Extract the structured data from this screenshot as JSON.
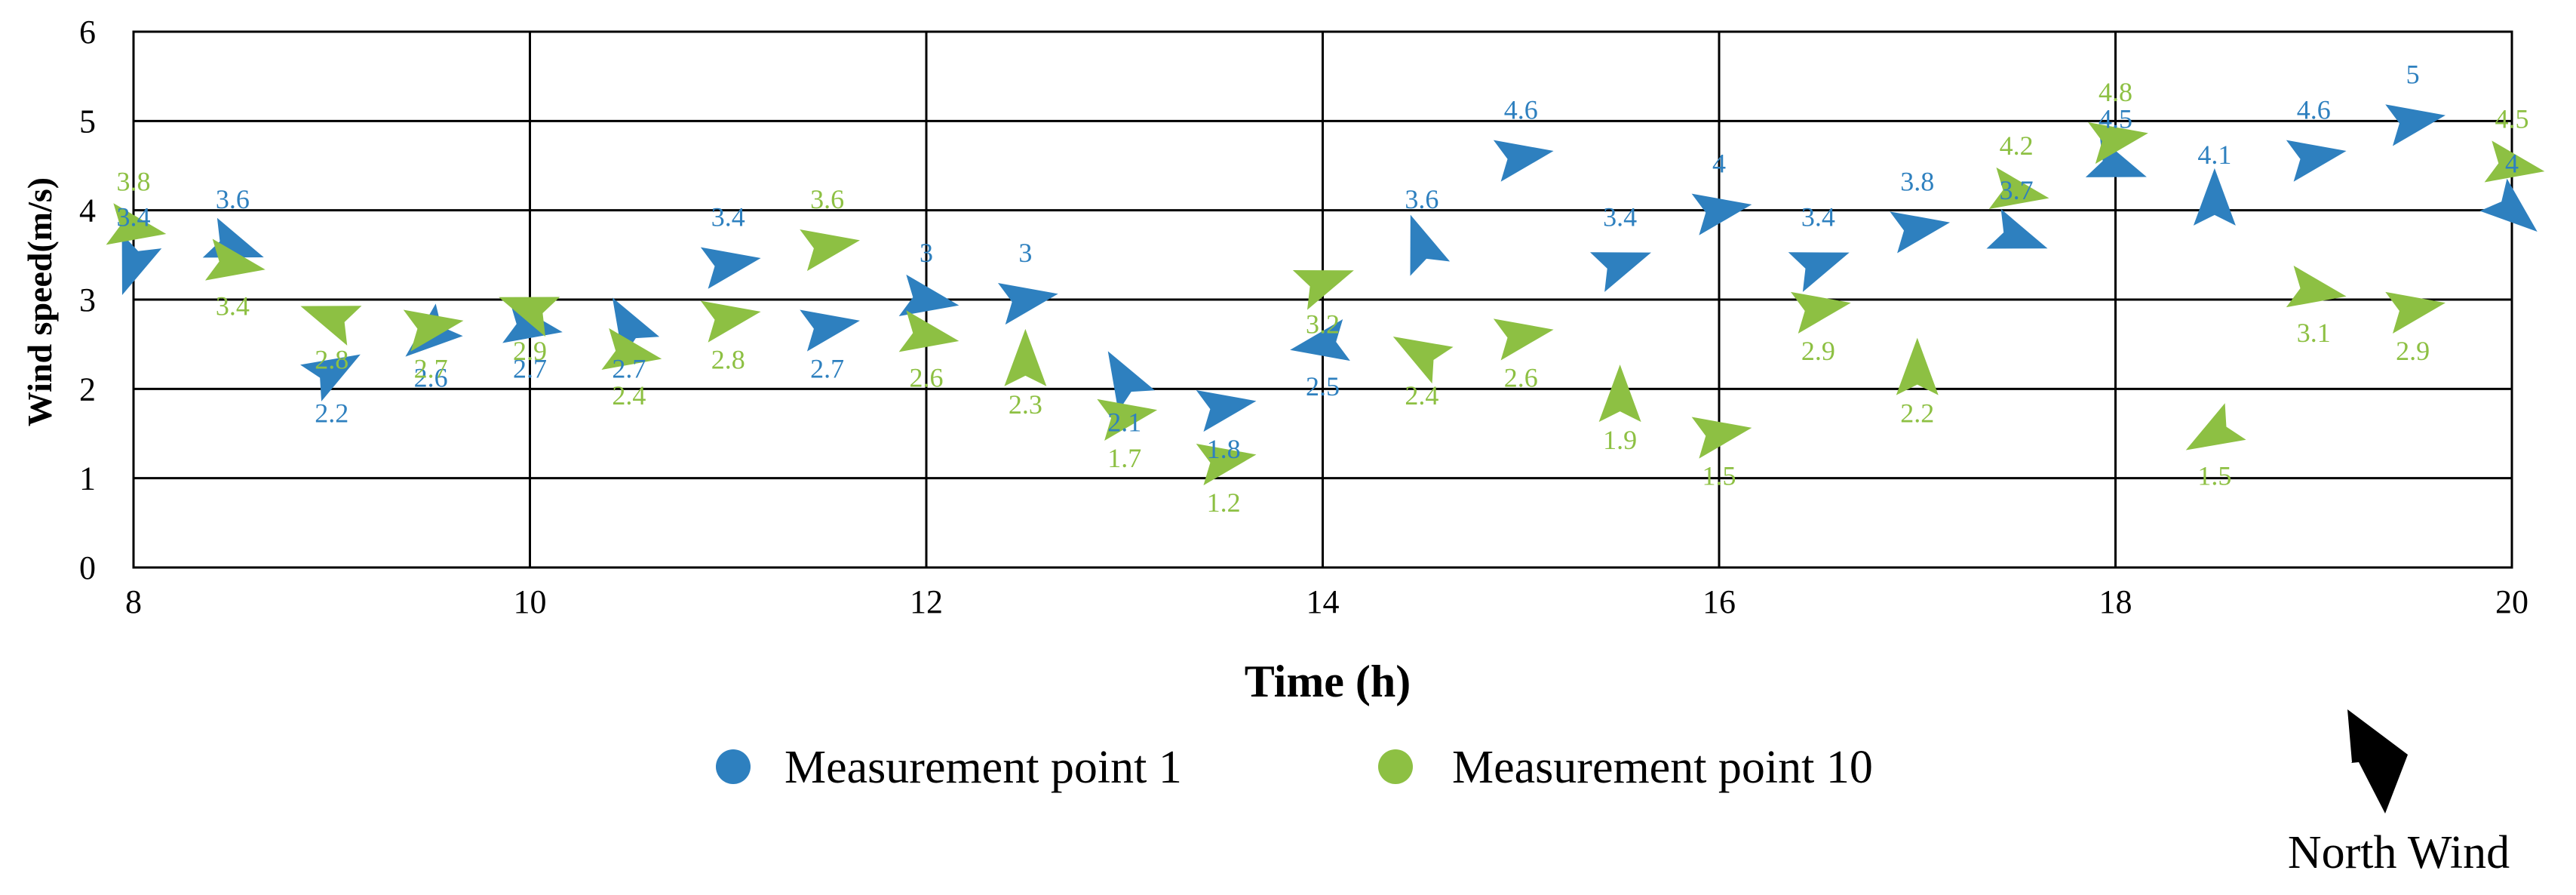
{
  "chart_data": {
    "type": "scatter",
    "xlabel": "Time (h)",
    "ylabel": "Wind speed(m/s)",
    "xlim": [
      8,
      20
    ],
    "ylim": [
      0,
      6
    ],
    "x_ticks": [
      "8",
      "10",
      "12",
      "14",
      "16",
      "18",
      "20"
    ],
    "y_ticks": [
      "0",
      "1",
      "2",
      "3",
      "4",
      "5",
      "6"
    ],
    "grid": true,
    "legend_position": "bottom",
    "marker": "arrow-head pointing in wind direction",
    "series": [
      {
        "name": "Measurement point 1",
        "color": "#2E80BF",
        "points": [
          {
            "x": 8.0,
            "y": 3.4,
            "label": "3.4",
            "angle": 200
          },
          {
            "x": 8.5,
            "y": 3.6,
            "label": "3.6",
            "angle": 110
          },
          {
            "x": 9.0,
            "y": 2.2,
            "label": "2.2",
            "angle": 60
          },
          {
            "x": 9.5,
            "y": 2.6,
            "label": "2.6",
            "angle": 230
          },
          {
            "x": 10.0,
            "y": 2.7,
            "label": "2.7",
            "angle": 100
          },
          {
            "x": 10.5,
            "y": 2.7,
            "label": "2.7",
            "angle": 330
          },
          {
            "x": 11.0,
            "y": 3.4,
            "label": "3.4",
            "angle": 80
          },
          {
            "x": 11.5,
            "y": 2.7,
            "label": "2.7",
            "angle": 80
          },
          {
            "x": 12.0,
            "y": 3.0,
            "label": "3",
            "angle": 100
          },
          {
            "x": 12.5,
            "y": 3.0,
            "label": "3",
            "angle": 80
          },
          {
            "x": 13.0,
            "y": 2.1,
            "label": "2.1",
            "angle": 330
          },
          {
            "x": 13.5,
            "y": 1.8,
            "label": "1.8",
            "angle": 80
          },
          {
            "x": 14.0,
            "y": 2.5,
            "label": "2.5",
            "angle": 260
          },
          {
            "x": 14.5,
            "y": 3.6,
            "label": "3.6",
            "angle": 340
          },
          {
            "x": 15.0,
            "y": 4.6,
            "label": "4.6",
            "angle": 80
          },
          {
            "x": 15.5,
            "y": 3.4,
            "label": "3.4",
            "angle": 70
          },
          {
            "x": 16.0,
            "y": 4.0,
            "label": "4",
            "angle": 80
          },
          {
            "x": 16.5,
            "y": 3.4,
            "label": "3.4",
            "angle": 70
          },
          {
            "x": 17.0,
            "y": 3.8,
            "label": "3.8",
            "angle": 80
          },
          {
            "x": 17.5,
            "y": 3.7,
            "label": "3.7",
            "angle": 110
          },
          {
            "x": 18.0,
            "y": 4.5,
            "label": "4.5",
            "angle": 110
          },
          {
            "x": 18.5,
            "y": 4.1,
            "label": "4.1",
            "angle": 0
          },
          {
            "x": 19.0,
            "y": 4.6,
            "label": "4.6",
            "angle": 80
          },
          {
            "x": 19.5,
            "y": 5.0,
            "label": "5",
            "angle": 80
          },
          {
            "x": 20.0,
            "y": 4.0,
            "label": "4",
            "angle": 130
          }
        ]
      },
      {
        "name": "Measurement point 10",
        "color": "#8DC043",
        "points": [
          {
            "x": 8.0,
            "y": 3.8,
            "label": "3.8",
            "angle": 100
          },
          {
            "x": 8.5,
            "y": 3.4,
            "label": "3.4",
            "angle": 100
          },
          {
            "x": 9.0,
            "y": 2.8,
            "label": "2.8",
            "angle": 290
          },
          {
            "x": 9.5,
            "y": 2.7,
            "label": "2.7",
            "angle": 80
          },
          {
            "x": 10.0,
            "y": 2.9,
            "label": "2.9",
            "angle": 290
          },
          {
            "x": 10.5,
            "y": 2.4,
            "label": "2.4",
            "angle": 100
          },
          {
            "x": 11.0,
            "y": 2.8,
            "label": "2.8",
            "angle": 80
          },
          {
            "x": 11.5,
            "y": 3.6,
            "label": "3.6",
            "angle": 80
          },
          {
            "x": 12.0,
            "y": 2.6,
            "label": "2.6",
            "angle": 100
          },
          {
            "x": 12.5,
            "y": 2.3,
            "label": "2.3",
            "angle": 0
          },
          {
            "x": 13.0,
            "y": 1.7,
            "label": "1.7",
            "angle": 80
          },
          {
            "x": 13.5,
            "y": 1.2,
            "label": "1.2",
            "angle": 80
          },
          {
            "x": 14.0,
            "y": 3.2,
            "label": "3.2",
            "angle": 70
          },
          {
            "x": 14.5,
            "y": 2.4,
            "label": "2.4",
            "angle": 300
          },
          {
            "x": 15.0,
            "y": 2.6,
            "label": "2.6",
            "angle": 80
          },
          {
            "x": 15.5,
            "y": 1.9,
            "label": "1.9",
            "angle": 0
          },
          {
            "x": 16.0,
            "y": 1.5,
            "label": "1.5",
            "angle": 80
          },
          {
            "x": 16.5,
            "y": 2.9,
            "label": "2.9",
            "angle": 80
          },
          {
            "x": 17.0,
            "y": 2.2,
            "label": "2.2",
            "angle": 0
          },
          {
            "x": 17.5,
            "y": 4.2,
            "label": "4.2",
            "angle": 100
          },
          {
            "x": 18.0,
            "y": 4.8,
            "label": "4.8",
            "angle": 80
          },
          {
            "x": 18.5,
            "y": 1.5,
            "label": "1.5",
            "angle": 240
          },
          {
            "x": 19.0,
            "y": 3.1,
            "label": "3.1",
            "angle": 100
          },
          {
            "x": 19.5,
            "y": 2.9,
            "label": "2.9",
            "angle": 80
          },
          {
            "x": 20.0,
            "y": 4.5,
            "label": "4.5",
            "angle": 100
          }
        ]
      }
    ],
    "reference": {
      "label": "North Wind",
      "icon": "north-wind-arrow-icon",
      "color": "#000000"
    }
  }
}
